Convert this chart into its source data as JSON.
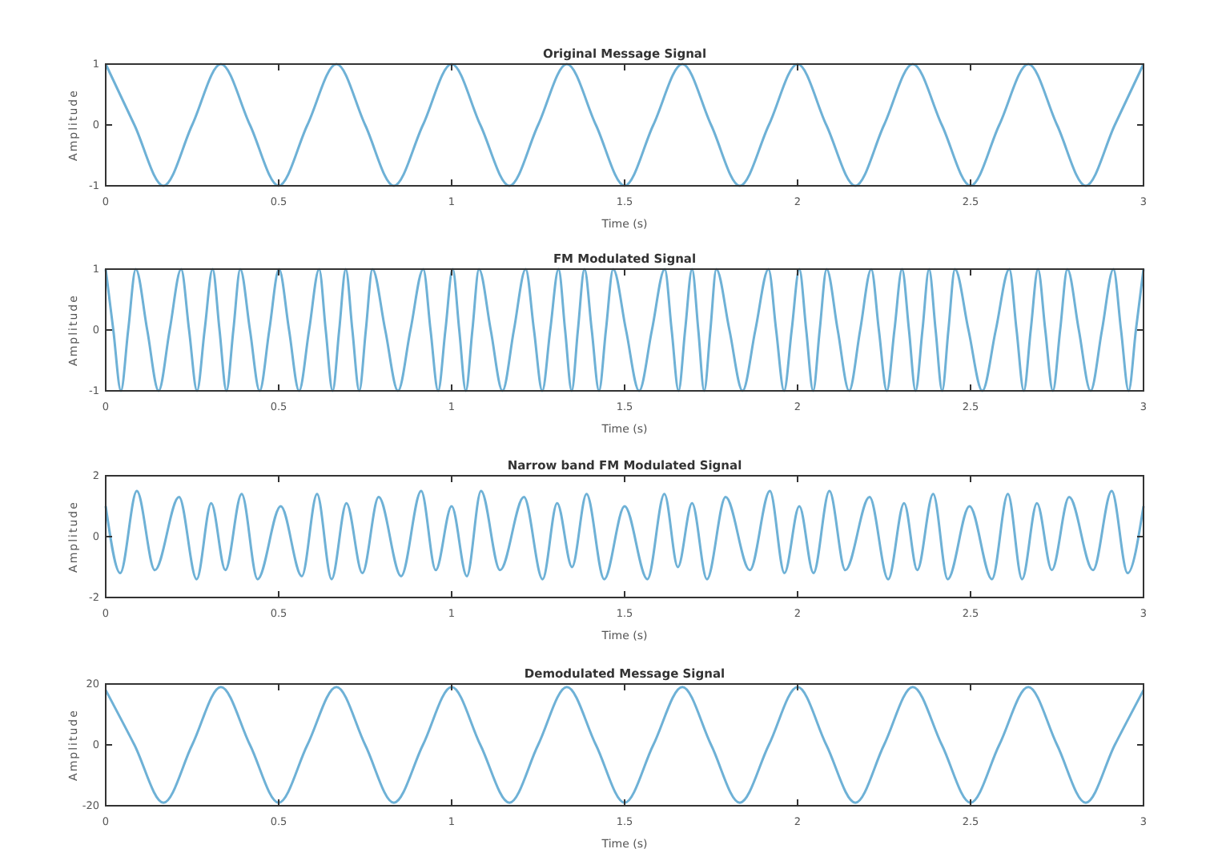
{
  "chart_data": [
    {
      "type": "line",
      "title": "Original Message Signal",
      "xlabel": "Time (s)",
      "ylabel": "Amplitude",
      "xlim": [
        0,
        3
      ],
      "xticks": [
        0,
        0.5,
        1,
        1.5,
        2,
        2.5,
        3
      ],
      "ylim": [
        -1,
        1
      ],
      "yticks": [
        -1,
        0,
        1
      ],
      "series": [
        {
          "color": "#6eb1d6",
          "x": [
            0,
            0.083,
            0.167,
            0.25,
            0.333,
            0.417,
            0.5,
            0.583,
            0.667,
            0.75,
            0.833,
            0.917,
            1,
            1.083,
            1.167,
            1.25,
            1.333,
            1.417,
            1.5,
            1.583,
            1.667,
            1.75,
            1.833,
            1.917,
            2,
            2.083,
            2.167,
            2.25,
            2.333,
            2.417,
            2.5,
            2.583,
            2.667,
            2.75,
            2.833,
            2.917,
            3
          ],
          "values": [
            1,
            0,
            -1,
            0,
            1,
            0,
            -1,
            0,
            1,
            0,
            -1,
            0,
            1,
            0,
            -1,
            0,
            1,
            0,
            -1,
            0,
            1,
            0,
            -1,
            0,
            1,
            0,
            -1,
            0,
            1,
            0,
            -1,
            0,
            1,
            0,
            -1,
            0,
            1
          ]
        }
      ]
    },
    {
      "type": "line",
      "title": "FM Modulated Signal",
      "xlabel": "Time (s)",
      "ylabel": "Amplitude",
      "xlim": [
        0,
        3
      ],
      "xticks": [
        0,
        0.5,
        1,
        1.5,
        2,
        2.5,
        3
      ],
      "ylim": [
        -1,
        1
      ],
      "yticks": [
        -1,
        0,
        1
      ],
      "series": [
        {
          "color": "#6eb1d6",
          "x": [
            0,
            0.022,
            0.044,
            0.065,
            0.087,
            0.12,
            0.153,
            0.185,
            0.218,
            0.241,
            0.264,
            0.286,
            0.309,
            0.329,
            0.349,
            0.369,
            0.389,
            0.417,
            0.445,
            0.473,
            0.501,
            0.53,
            0.559,
            0.588,
            0.617,
            0.636,
            0.656,
            0.675,
            0.694,
            0.713,
            0.733,
            0.752,
            0.771,
            0.808,
            0.845,
            0.881,
            0.918,
            0.939,
            0.961,
            0.982,
            1.003,
            1.022,
            1.041,
            1.06,
            1.079,
            1.113,
            1.147,
            1.18,
            1.214,
            1.238,
            1.262,
            1.285,
            1.309,
            1.328,
            1.347,
            1.365,
            1.384,
            1.405,
            1.426,
            1.446,
            1.467,
            1.504,
            1.542,
            1.579,
            1.616,
            1.636,
            1.656,
            1.675,
            1.695,
            1.713,
            1.73,
            1.748,
            1.765,
            1.803,
            1.841,
            1.878,
            1.916,
            1.938,
            1.961,
            1.983,
            2.005,
            2.025,
            2.045,
            2.064,
            2.084,
            2.116,
            2.149,
            2.181,
            2.213,
            2.235,
            2.258,
            2.28,
            2.302,
            2.322,
            2.341,
            2.361,
            2.38,
            2.399,
            2.418,
            2.436,
            2.455,
            2.494,
            2.534,
            2.573,
            2.612,
            2.633,
            2.654,
            2.674,
            2.695,
            2.716,
            2.738,
            2.759,
            2.78,
            2.813,
            2.847,
            2.88,
            2.913,
            2.935,
            2.957,
            2.978,
            3
          ],
          "values": [
            1,
            0,
            -1,
            0,
            1,
            0,
            -1,
            0,
            1,
            0,
            -1,
            0,
            1,
            0,
            -1,
            0,
            1,
            0,
            -1,
            0,
            1,
            0,
            -1,
            0,
            1,
            0,
            -1,
            0,
            1,
            0,
            -1,
            0,
            1,
            0,
            -1,
            0,
            1,
            0,
            -1,
            0,
            1,
            0,
            -1,
            0,
            1,
            0,
            -1,
            0,
            1,
            0,
            -1,
            0,
            1,
            0,
            -1,
            0,
            1,
            0,
            -1,
            0,
            1,
            0,
            -1,
            0,
            1,
            0,
            -1,
            0,
            1,
            0,
            -1,
            0,
            1,
            0,
            -1,
            0,
            1,
            0,
            -1,
            0,
            1,
            0,
            -1,
            0,
            1,
            0,
            -1,
            0,
            1,
            0,
            -1,
            0,
            1,
            0,
            -1,
            0,
            1,
            0,
            -1,
            0,
            1,
            0,
            -1,
            0,
            1,
            0,
            -1,
            0,
            1,
            0,
            -1,
            0,
            1,
            0,
            -1,
            0,
            1,
            0,
            -1,
            0,
            1
          ]
        }
      ]
    },
    {
      "type": "line",
      "title": "Narrow band FM Modulated Signal",
      "xlabel": "Time (s)",
      "ylabel": "Amplitude",
      "xlim": [
        0,
        3
      ],
      "xticks": [
        0,
        0.5,
        1,
        1.5,
        2,
        2.5,
        3
      ],
      "ylim": [
        -2,
        2
      ],
      "yticks": [
        -2,
        0,
        2
      ],
      "series": [
        {
          "color": "#6eb1d6",
          "x": [
            0,
            0.042,
            0.09,
            0.142,
            0.212,
            0.263,
            0.305,
            0.346,
            0.393,
            0.439,
            0.506,
            0.567,
            0.611,
            0.653,
            0.696,
            0.742,
            0.789,
            0.854,
            0.912,
            0.954,
            1,
            1.044,
            1.085,
            1.14,
            1.209,
            1.263,
            1.305,
            1.348,
            1.39,
            1.441,
            1.5,
            1.566,
            1.615,
            1.654,
            1.695,
            1.738,
            1.792,
            1.862,
            1.92,
            1.962,
            2.005,
            2.046,
            2.092,
            2.138,
            2.208,
            2.262,
            2.308,
            2.346,
            2.392,
            2.434,
            2.497,
            2.562,
            2.608,
            2.649,
            2.692,
            2.735,
            2.785,
            2.854,
            2.908,
            2.954,
            3
          ],
          "values": [
            1,
            -1.2,
            1.5,
            -1.1,
            1.3,
            -1.4,
            1.1,
            -1.1,
            1.4,
            -1.4,
            1,
            -1.3,
            1.4,
            -1.4,
            1.1,
            -1.2,
            1.3,
            -1.3,
            1.5,
            -1.1,
            1,
            -1.3,
            1.5,
            -1.1,
            1.3,
            -1.4,
            1.1,
            -1,
            1.4,
            -1.4,
            1,
            -1.4,
            1.4,
            -1,
            1.1,
            -1.4,
            1.3,
            -1.1,
            1.5,
            -1.2,
            1,
            -1.2,
            1.5,
            -1.1,
            1.3,
            -1.4,
            1.1,
            -1.1,
            1.4,
            -1.4,
            1,
            -1.4,
            1.4,
            -1.4,
            1.1,
            -1.1,
            1.3,
            -1.1,
            1.5,
            -1.2,
            1
          ]
        }
      ]
    },
    {
      "type": "line",
      "title": "Demodulated Message Signal",
      "xlabel": "Time (s)",
      "ylabel": "Amplitude",
      "xlim": [
        0,
        3
      ],
      "xticks": [
        0,
        0.5,
        1,
        1.5,
        2,
        2.5,
        3
      ],
      "ylim": [
        -20,
        20
      ],
      "yticks": [
        -20,
        0,
        20
      ],
      "series": [
        {
          "color": "#6eb1d6",
          "x": [
            0,
            0.083,
            0.167,
            0.25,
            0.333,
            0.417,
            0.5,
            0.583,
            0.667,
            0.75,
            0.833,
            0.917,
            1,
            1.083,
            1.167,
            1.25,
            1.333,
            1.417,
            1.5,
            1.583,
            1.667,
            1.75,
            1.833,
            1.917,
            2,
            2.083,
            2.167,
            2.25,
            2.333,
            2.417,
            2.5,
            2.583,
            2.667,
            2.75,
            2.833,
            2.917,
            3
          ],
          "values": [
            18,
            0,
            -19,
            0,
            19,
            0,
            -19,
            0,
            19,
            0,
            -19,
            0,
            19,
            0,
            -19,
            0,
            19,
            0,
            -19,
            0,
            19,
            0,
            -19,
            0,
            19,
            0,
            -19,
            0,
            19,
            0,
            -19,
            0,
            19,
            0,
            -19,
            0,
            18
          ]
        }
      ]
    }
  ]
}
